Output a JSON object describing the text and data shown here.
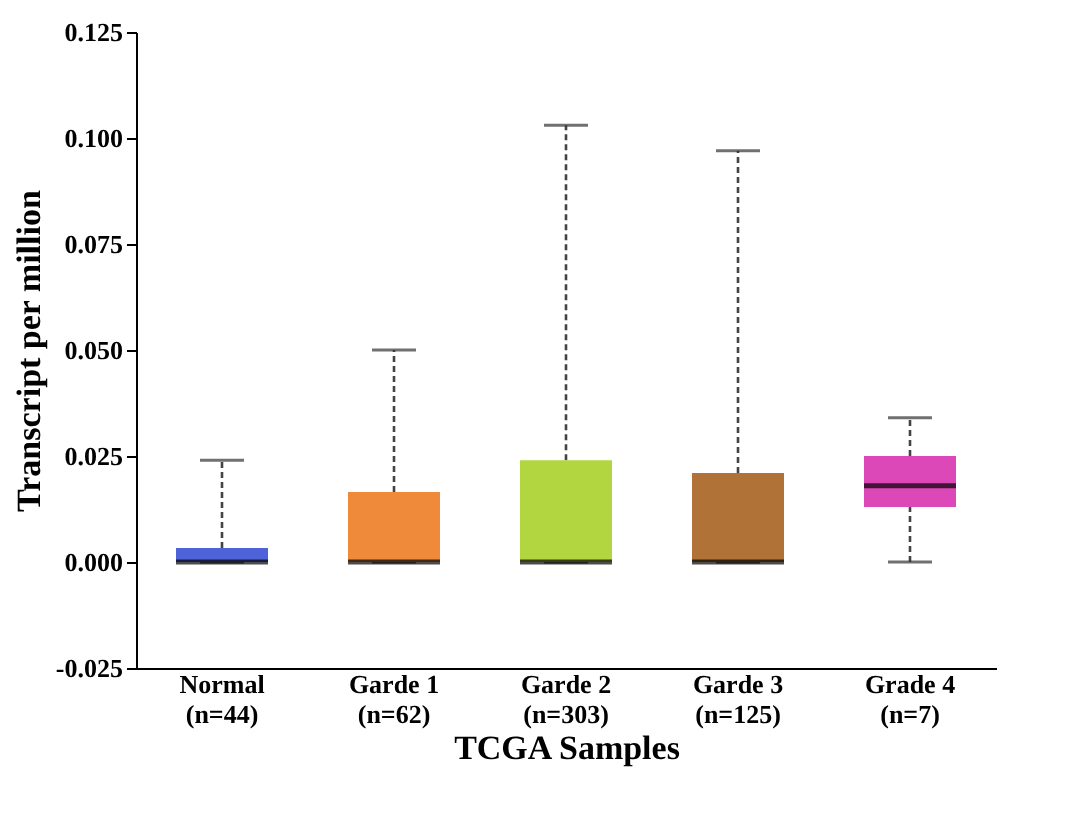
{
  "chart_data": {
    "type": "box",
    "xlabel": "TCGA Samples",
    "ylabel": "Transcript per million",
    "categories": [
      "Normal\n(n=44)",
      "Garde 1\n(n=62)",
      "Garde 2\n(n=303)",
      "Garde 3\n(n=125)",
      "Grade 4\n(n=7)"
    ],
    "colors": [
      "#4f63d9",
      "#ef8a3b",
      "#b1d63f",
      "#b07237",
      "#dd48b8"
    ],
    "boxes": [
      {
        "low": 0,
        "q1": 0,
        "median": 0,
        "q3": 0.0033,
        "high": 0.024
      },
      {
        "low": 0,
        "q1": 0,
        "median": 0,
        "q3": 0.0165,
        "high": 0.05
      },
      {
        "low": 0,
        "q1": 0,
        "median": 0,
        "q3": 0.024,
        "high": 0.103
      },
      {
        "low": 0,
        "q1": 0,
        "median": 0,
        "q3": 0.021,
        "high": 0.097
      },
      {
        "low": 0,
        "q1": 0.013,
        "median": 0.018,
        "q3": 0.025,
        "high": 0.034
      }
    ],
    "ylim": [
      -0.025,
      0.125
    ],
    "yticks": [
      {
        "value": -0.025,
        "label": "-0.025"
      },
      {
        "value": 0,
        "label": "0.000"
      },
      {
        "value": 0.025,
        "label": "0.025"
      },
      {
        "value": 0.05,
        "label": "0.050"
      },
      {
        "value": 0.075,
        "label": "0.075"
      },
      {
        "value": 0.1,
        "label": "0.100"
      },
      {
        "value": 0.125,
        "label": "0.125"
      }
    ]
  }
}
